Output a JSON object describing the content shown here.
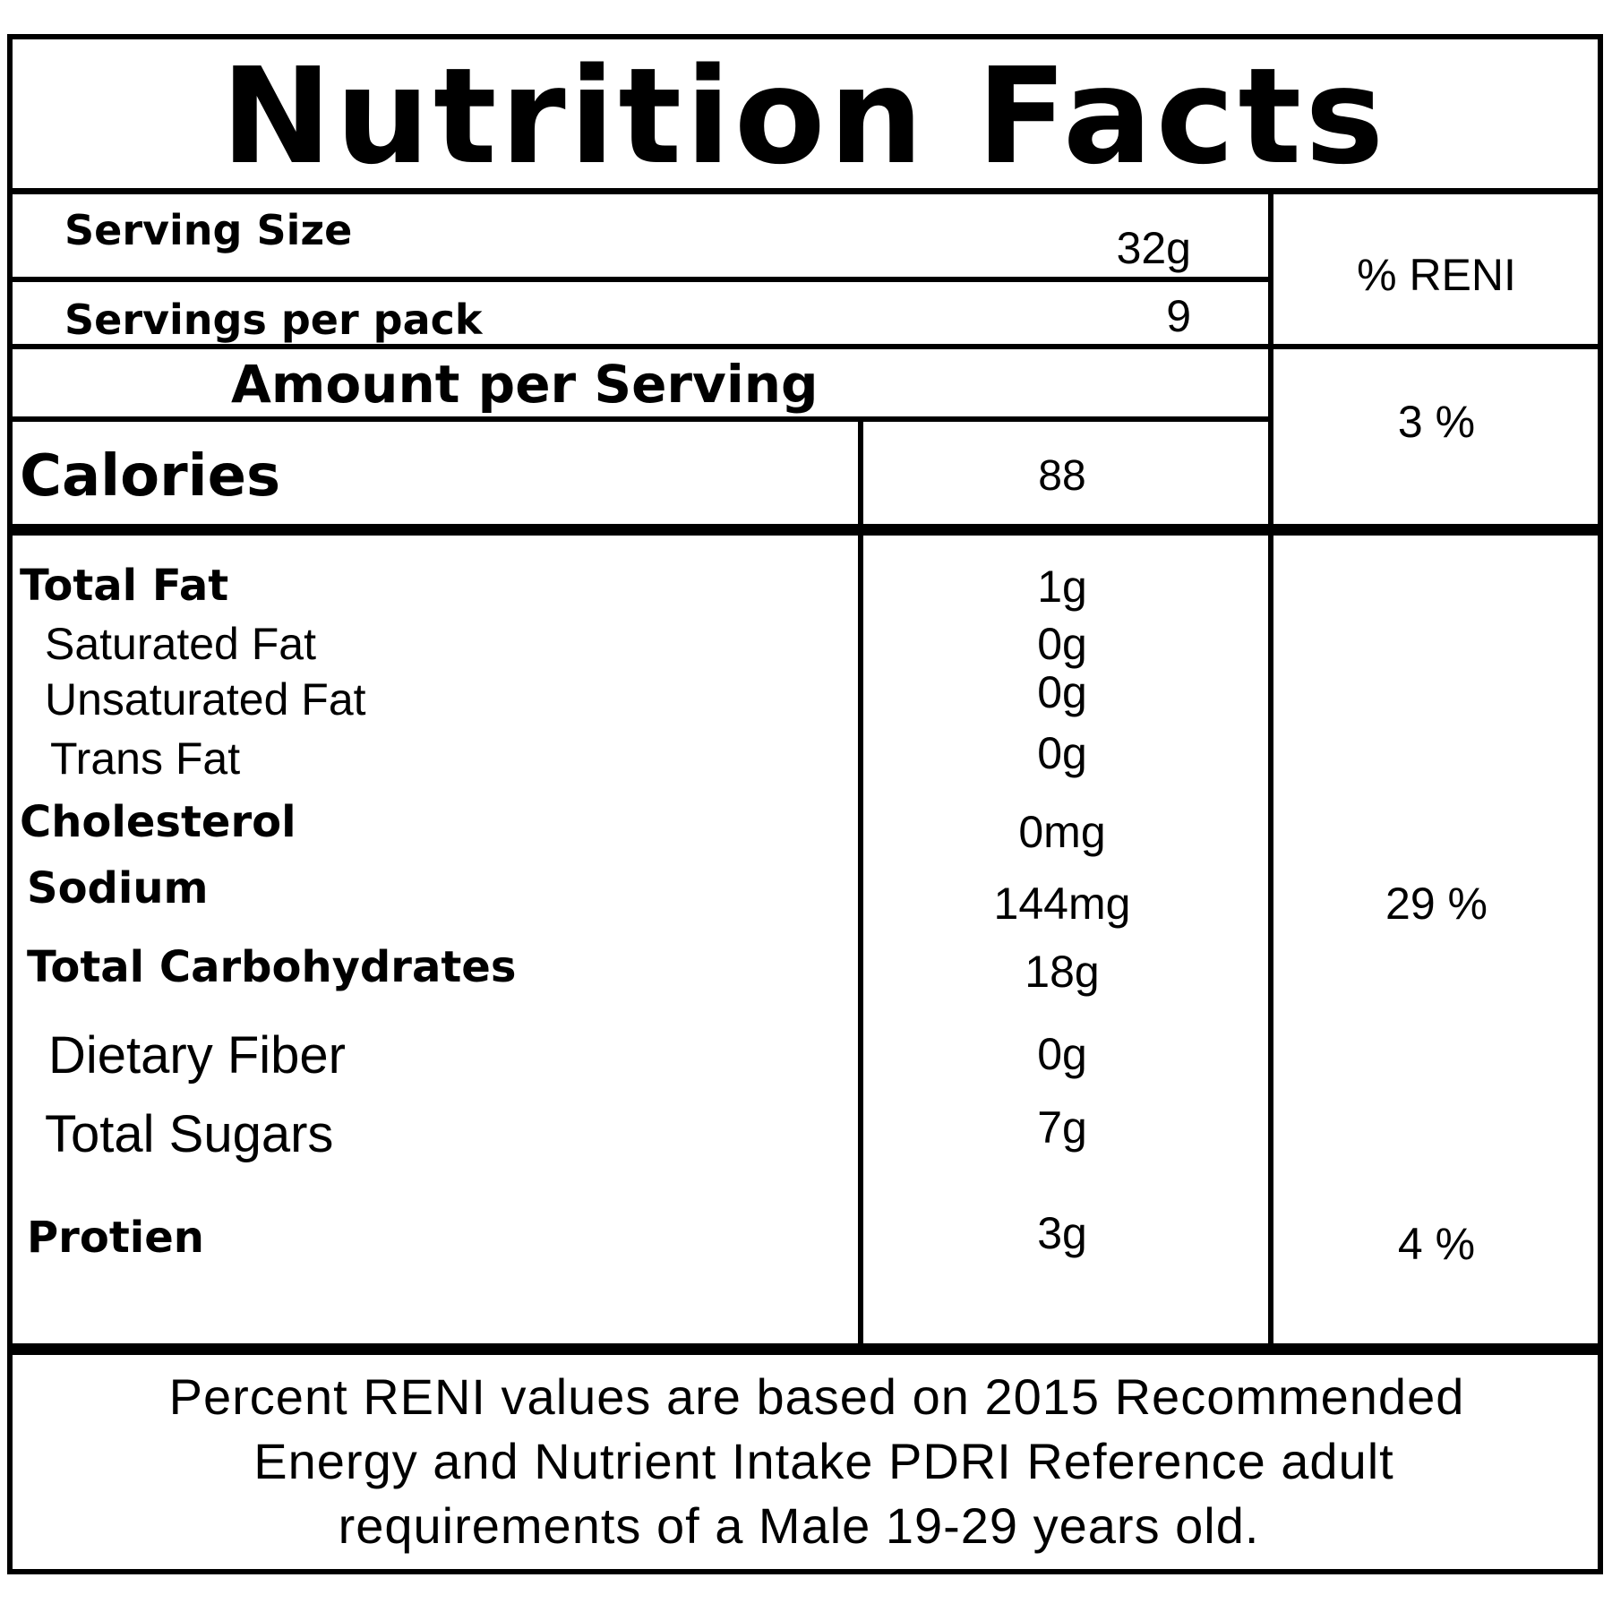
{
  "title": "Nutrition Facts",
  "serving": {
    "size_label": "Serving Size",
    "size_value": "32g",
    "per_pack_label": "Servings per pack",
    "per_pack_value": "9",
    "reni_header": "% RENI"
  },
  "amount": {
    "header": "Amount per Serving",
    "calories_label": "Calories",
    "calories_value": "88",
    "calories_pct": "3 %"
  },
  "nutrients": {
    "total_fat": {
      "label": "Total Fat",
      "value": "1g"
    },
    "saturated_fat": {
      "label": "Saturated Fat",
      "value": "0g"
    },
    "unsaturated_fat": {
      "label": "Unsaturated Fat",
      "value": "0g"
    },
    "trans_fat": {
      "label": "Trans Fat",
      "value": "0g"
    },
    "cholesterol": {
      "label": "Cholesterol",
      "value": "0mg"
    },
    "sodium": {
      "label": "Sodium",
      "value": "144mg",
      "pct": "29 %"
    },
    "total_carbs": {
      "label": "Total Carbohydrates",
      "value": "18g"
    },
    "dietary_fiber": {
      "label": "Dietary Fiber",
      "value": "0g"
    },
    "total_sugars": {
      "label": "Total Sugars",
      "value": "7g"
    },
    "protein": {
      "label": "Protien",
      "value": "3g",
      "pct": "4 %"
    }
  },
  "footnote": {
    "line1": "Percent RENI values are based on 2015 Recommended",
    "line2": "Energy and Nutrient Intake PDRI Reference adult",
    "line3": "requirements of a Male 19-29 years old."
  }
}
